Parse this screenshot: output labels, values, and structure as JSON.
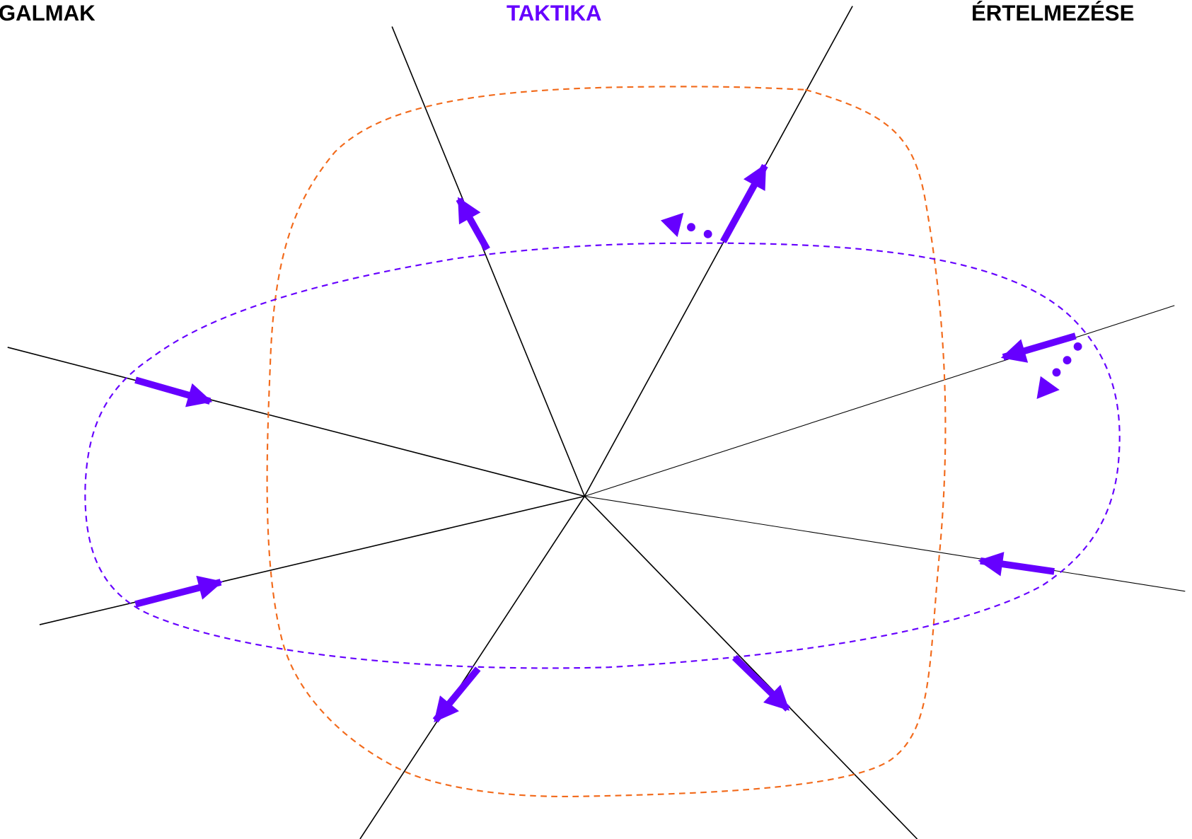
{
  "labels": {
    "left": "GALMAK",
    "center": "TAKTIKA",
    "right": "ÉRTELMEZÉSE"
  }
}
